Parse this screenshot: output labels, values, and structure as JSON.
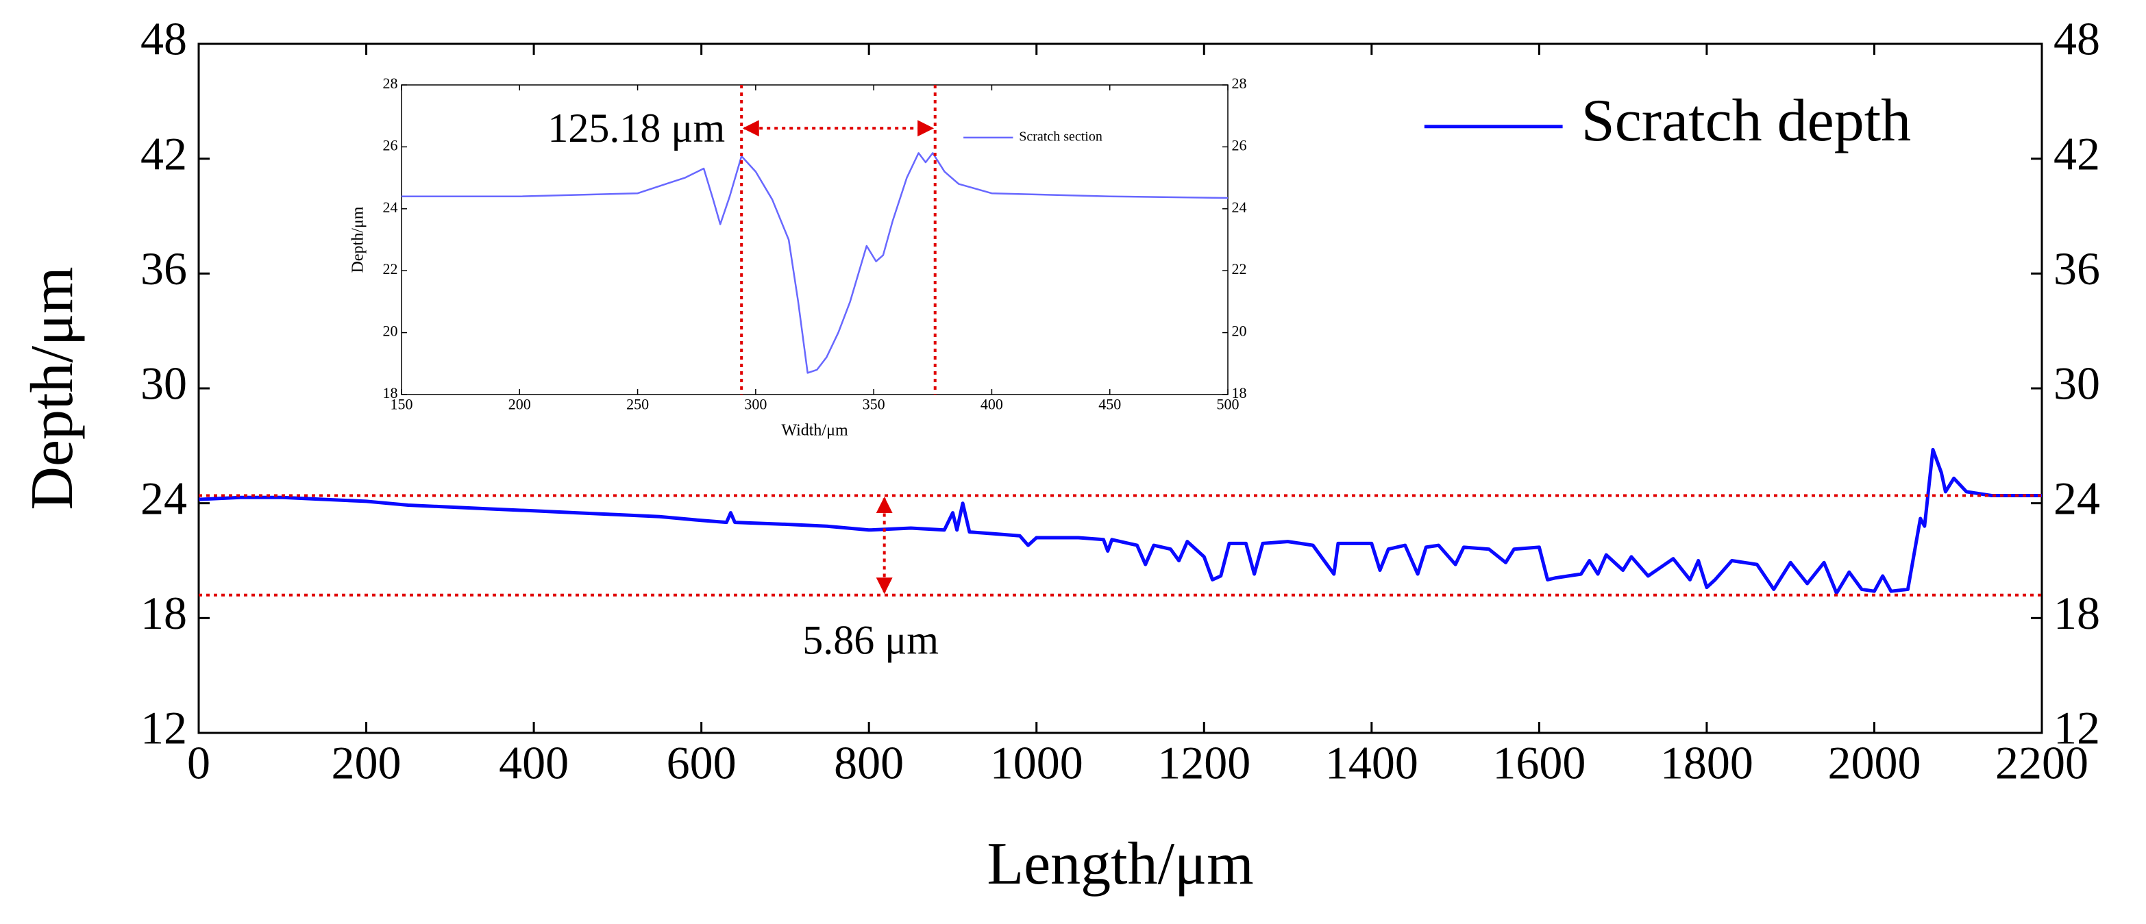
{
  "chart_data": [
    {
      "type": "line",
      "xlabel": "Length/μm",
      "ylabel": "Depth/μm",
      "x": [
        0,
        50,
        100,
        150,
        200,
        250,
        300,
        350,
        400,
        450,
        500,
        550,
        600,
        630,
        635,
        640,
        700,
        750,
        800,
        850,
        890,
        900,
        905,
        912,
        920,
        950,
        980,
        990,
        1000,
        1050,
        1080,
        1085,
        1090,
        1120,
        1130,
        1140,
        1160,
        1170,
        1180,
        1200,
        1210,
        1220,
        1230,
        1250,
        1260,
        1270,
        1300,
        1330,
        1355,
        1360,
        1400,
        1410,
        1420,
        1440,
        1455,
        1465,
        1480,
        1500,
        1510,
        1540,
        1560,
        1570,
        1600,
        1610,
        1620,
        1650,
        1660,
        1670,
        1680,
        1700,
        1710,
        1730,
        1760,
        1780,
        1790,
        1800,
        1810,
        1830,
        1860,
        1880,
        1900,
        1920,
        1940,
        1955,
        1970,
        1985,
        2000,
        2010,
        2020,
        2040,
        2055,
        2060,
        2070,
        2080,
        2085,
        2095,
        2110,
        2140,
        2200
      ],
      "series": [
        {
          "name": "Scratch depth",
          "color": "#0a0aff",
          "values": [
            24.2,
            24.3,
            24.3,
            24.2,
            24.1,
            23.9,
            23.8,
            23.7,
            23.6,
            23.5,
            23.4,
            23.3,
            23.1,
            23.0,
            23.5,
            23.0,
            22.9,
            22.8,
            22.6,
            22.7,
            22.6,
            23.5,
            22.6,
            24.0,
            22.5,
            22.4,
            22.3,
            21.8,
            22.2,
            22.2,
            22.1,
            21.5,
            22.1,
            21.8,
            20.8,
            21.8,
            21.6,
            21.0,
            22.0,
            21.2,
            20.0,
            20.2,
            21.9,
            21.9,
            20.3,
            21.9,
            22.0,
            21.8,
            20.3,
            21.9,
            21.9,
            20.5,
            21.6,
            21.8,
            20.3,
            21.7,
            21.8,
            20.8,
            21.7,
            21.6,
            20.9,
            21.6,
            21.7,
            20.0,
            20.1,
            20.3,
            21.0,
            20.3,
            21.3,
            20.5,
            21.2,
            20.2,
            21.1,
            20.0,
            21.0,
            19.6,
            20.0,
            21.0,
            20.8,
            19.5,
            20.9,
            19.8,
            20.9,
            19.3,
            20.4,
            19.5,
            19.4,
            20.2,
            19.4,
            19.5,
            23.2,
            22.8,
            26.8,
            25.6,
            24.6,
            25.3,
            24.6,
            24.4,
            24.4
          ]
        }
      ],
      "xlim": [
        0,
        2200
      ],
      "xticks": [
        0,
        200,
        400,
        600,
        800,
        1000,
        1200,
        1400,
        1600,
        1800,
        2000,
        2200
      ],
      "ylim": [
        12,
        48
      ],
      "yticks": [
        12,
        18,
        24,
        30,
        36,
        42,
        48
      ],
      "reference_lines": [
        24.4,
        19.2
      ],
      "annotations": [
        "5.86 μm"
      ],
      "legend": "upper right"
    },
    {
      "type": "line",
      "xlabel": "Width/μm",
      "ylabel": "Depth/μm",
      "x": [
        150,
        200,
        250,
        262,
        270,
        278,
        282,
        285,
        289,
        294,
        300,
        307,
        314,
        318,
        322,
        326,
        330,
        335,
        340,
        347,
        351,
        354,
        358,
        364,
        369,
        372,
        375,
        380,
        386,
        400,
        450,
        500
      ],
      "series": [
        {
          "name": "Scratch section",
          "color": "#6868ff",
          "values": [
            24.4,
            24.4,
            24.5,
            24.8,
            25.0,
            25.3,
            24.3,
            23.5,
            24.4,
            25.7,
            25.2,
            24.3,
            23.0,
            21.0,
            18.7,
            18.8,
            19.2,
            20.0,
            21.0,
            22.8,
            22.3,
            22.5,
            23.6,
            25.0,
            25.8,
            25.5,
            25.8,
            25.2,
            24.8,
            24.5,
            24.4,
            24.35
          ]
        }
      ],
      "xlim": [
        150,
        500
      ],
      "xticks": [
        150,
        200,
        250,
        300,
        350,
        400,
        450,
        500
      ],
      "ylim": [
        18,
        28
      ],
      "yticks": [
        18,
        20,
        22,
        24,
        26,
        28
      ],
      "reference_lines_x": [
        294,
        376
      ],
      "annotations": [
        "125.18 μm"
      ],
      "legend": "upper right"
    }
  ]
}
